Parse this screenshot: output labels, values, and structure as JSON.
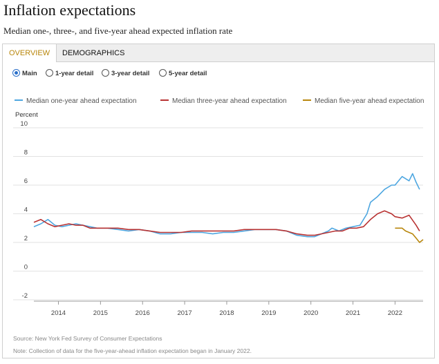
{
  "header": {
    "title": "Inflation expectations",
    "subtitle": "Median one-, three-, and five-year ahead expected inflation rate"
  },
  "tabs": [
    {
      "label": "OVERVIEW",
      "active": true
    },
    {
      "label": "DEMOGRAPHICS",
      "active": false
    }
  ],
  "radios": [
    {
      "label": "Main",
      "checked": true
    },
    {
      "label": "1-year detail",
      "checked": false
    },
    {
      "label": "3-year detail",
      "checked": false
    },
    {
      "label": "5-year detail",
      "checked": false
    }
  ],
  "footer": {
    "source": "Source: New York Fed Survey of Consumer Expectations",
    "note": "Note: Collection of data for the five-year-ahead inflation expectation began in January 2022."
  },
  "chart_data": {
    "type": "line",
    "title": "",
    "ylabel": "Percent",
    "xlabel": "",
    "ylim": [
      -2,
      10
    ],
    "yticks": [
      -2,
      0,
      2,
      4,
      6,
      8,
      10
    ],
    "xticks": [
      "2014",
      "2015",
      "2016",
      "2017",
      "2018",
      "2019",
      "2020",
      "2021",
      "2022"
    ],
    "xlim": [
      "2013-06",
      "2022-09"
    ],
    "grid": true,
    "legend_position": "top",
    "series": [
      {
        "name": "Median one-year ahead expectation",
        "color": "#4da6e0",
        "points": [
          [
            "2013-06",
            3.1
          ],
          [
            "2013-08",
            3.3
          ],
          [
            "2013-10",
            3.6
          ],
          [
            "2013-12",
            3.2
          ],
          [
            "2014-02",
            3.1
          ],
          [
            "2014-04",
            3.2
          ],
          [
            "2014-06",
            3.3
          ],
          [
            "2014-08",
            3.2
          ],
          [
            "2014-10",
            3.1
          ],
          [
            "2014-12",
            3.0
          ],
          [
            "2015-03",
            3.0
          ],
          [
            "2015-06",
            2.9
          ],
          [
            "2015-09",
            2.8
          ],
          [
            "2015-12",
            2.9
          ],
          [
            "2016-03",
            2.8
          ],
          [
            "2016-06",
            2.6
          ],
          [
            "2016-09",
            2.6
          ],
          [
            "2016-12",
            2.7
          ],
          [
            "2017-03",
            2.7
          ],
          [
            "2017-06",
            2.7
          ],
          [
            "2017-09",
            2.6
          ],
          [
            "2017-12",
            2.7
          ],
          [
            "2018-03",
            2.7
          ],
          [
            "2018-06",
            2.8
          ],
          [
            "2018-09",
            2.9
          ],
          [
            "2018-12",
            2.9
          ],
          [
            "2019-03",
            2.9
          ],
          [
            "2019-06",
            2.8
          ],
          [
            "2019-09",
            2.5
          ],
          [
            "2019-12",
            2.4
          ],
          [
            "2020-02",
            2.4
          ],
          [
            "2020-04",
            2.6
          ],
          [
            "2020-06",
            2.8
          ],
          [
            "2020-07",
            3.0
          ],
          [
            "2020-09",
            2.8
          ],
          [
            "2020-11",
            3.0
          ],
          [
            "2021-01",
            3.1
          ],
          [
            "2021-03",
            3.2
          ],
          [
            "2021-05",
            4.0
          ],
          [
            "2021-06",
            4.8
          ],
          [
            "2021-08",
            5.2
          ],
          [
            "2021-10",
            5.7
          ],
          [
            "2021-12",
            6.0
          ],
          [
            "2022-01",
            6.0
          ],
          [
            "2022-03",
            6.6
          ],
          [
            "2022-05",
            6.3
          ],
          [
            "2022-06",
            6.8
          ],
          [
            "2022-07",
            6.2
          ],
          [
            "2022-08",
            5.7
          ]
        ]
      },
      {
        "name": "Median three-year ahead expectation",
        "color": "#b83232",
        "points": [
          [
            "2013-06",
            3.4
          ],
          [
            "2013-08",
            3.6
          ],
          [
            "2013-10",
            3.3
          ],
          [
            "2013-12",
            3.1
          ],
          [
            "2014-02",
            3.2
          ],
          [
            "2014-04",
            3.3
          ],
          [
            "2014-06",
            3.2
          ],
          [
            "2014-08",
            3.2
          ],
          [
            "2014-10",
            3.0
          ],
          [
            "2014-12",
            3.0
          ],
          [
            "2015-03",
            3.0
          ],
          [
            "2015-06",
            3.0
          ],
          [
            "2015-09",
            2.9
          ],
          [
            "2015-12",
            2.9
          ],
          [
            "2016-03",
            2.8
          ],
          [
            "2016-06",
            2.7
          ],
          [
            "2016-09",
            2.7
          ],
          [
            "2016-12",
            2.7
          ],
          [
            "2017-03",
            2.8
          ],
          [
            "2017-06",
            2.8
          ],
          [
            "2017-09",
            2.8
          ],
          [
            "2017-12",
            2.8
          ],
          [
            "2018-03",
            2.8
          ],
          [
            "2018-06",
            2.9
          ],
          [
            "2018-09",
            2.9
          ],
          [
            "2018-12",
            2.9
          ],
          [
            "2019-03",
            2.9
          ],
          [
            "2019-06",
            2.8
          ],
          [
            "2019-09",
            2.6
          ],
          [
            "2019-12",
            2.5
          ],
          [
            "2020-02",
            2.5
          ],
          [
            "2020-04",
            2.6
          ],
          [
            "2020-06",
            2.7
          ],
          [
            "2020-08",
            2.8
          ],
          [
            "2020-10",
            2.8
          ],
          [
            "2020-12",
            3.0
          ],
          [
            "2021-02",
            3.0
          ],
          [
            "2021-04",
            3.1
          ],
          [
            "2021-06",
            3.6
          ],
          [
            "2021-08",
            4.0
          ],
          [
            "2021-10",
            4.2
          ],
          [
            "2021-12",
            4.0
          ],
          [
            "2022-01",
            3.8
          ],
          [
            "2022-03",
            3.7
          ],
          [
            "2022-05",
            3.9
          ],
          [
            "2022-07",
            3.2
          ],
          [
            "2022-08",
            2.8
          ]
        ]
      },
      {
        "name": "Median five-year ahead expectation",
        "color": "#b8860b",
        "points": [
          [
            "2022-01",
            3.0
          ],
          [
            "2022-02",
            3.0
          ],
          [
            "2022-03",
            3.0
          ],
          [
            "2022-04",
            2.8
          ],
          [
            "2022-05",
            2.7
          ],
          [
            "2022-06",
            2.6
          ],
          [
            "2022-07",
            2.3
          ],
          [
            "2022-08",
            2.0
          ],
          [
            "2022-09",
            2.2
          ]
        ]
      }
    ]
  }
}
